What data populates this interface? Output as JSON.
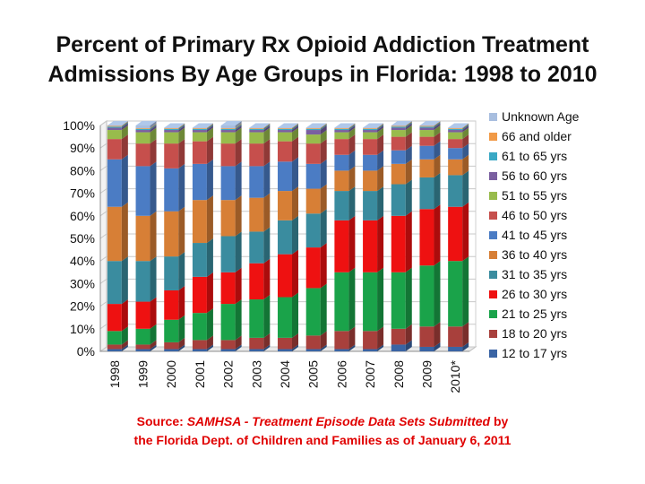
{
  "title_lines": [
    "Percent of Primary Rx Opioid Addiction Treatment",
    "Admissions By Age Groups in Florida: 1998 to 2010"
  ],
  "source": {
    "prefix": "Source:",
    "italic": "SAMHSA - Treatment Episode Data Sets  Submitted",
    "suffix": " by",
    "line2": "the Florida Dept. of Children and Families as of January 6, 2011"
  },
  "chart_data": {
    "type": "bar",
    "stacked": true,
    "title": "Percent of Primary Rx Opioid Addiction Treatment Admissions By Age Groups in Florida: 1998 to 2010",
    "xlabel": "",
    "ylabel": "",
    "ylim": [
      0,
      100
    ],
    "y_ticks": [
      "0%",
      "10%",
      "20%",
      "30%",
      "40%",
      "50%",
      "60%",
      "70%",
      "80%",
      "90%",
      "100%"
    ],
    "legend_position": "right",
    "categories": [
      "1998",
      "1999",
      "2000",
      "2001",
      "2002",
      "2003",
      "2004",
      "2005",
      "2006",
      "2007",
      "2008",
      "2009",
      "2010*"
    ],
    "series": [
      {
        "name": "12 to 17 yrs",
        "color": "#3a64a4",
        "values": [
          1,
          1,
          1,
          1,
          1,
          1,
          1,
          1,
          1,
          1,
          3,
          2,
          2
        ]
      },
      {
        "name": "18 to 20 yrs",
        "color": "#a8403c",
        "values": [
          2,
          2,
          3,
          4,
          4,
          5,
          5,
          6,
          8,
          8,
          7,
          9,
          9
        ]
      },
      {
        "name": "21 to 25 yrs",
        "color": "#1aa34a",
        "values": [
          6,
          7,
          10,
          12,
          16,
          17,
          18,
          21,
          26,
          26,
          25,
          27,
          29
        ]
      },
      {
        "name": "26 to 30 yrs",
        "color": "#ee1111",
        "values": [
          12,
          12,
          13,
          16,
          14,
          16,
          19,
          18,
          23,
          23,
          25,
          25,
          24
        ]
      },
      {
        "name": "31 to 35 yrs",
        "color": "#3a8c9f",
        "values": [
          19,
          18,
          15,
          15,
          16,
          14,
          15,
          15,
          13,
          13,
          14,
          14,
          14
        ]
      },
      {
        "name": "36 to 40 yrs",
        "color": "#d77f36",
        "values": [
          24,
          20,
          20,
          19,
          16,
          15,
          13,
          11,
          9,
          9,
          9,
          8,
          7
        ]
      },
      {
        "name": "41 to 45 yrs",
        "color": "#4b7cc4",
        "values": [
          21,
          22,
          19,
          16,
          15,
          14,
          13,
          11,
          7,
          7,
          6,
          6,
          5
        ]
      },
      {
        "name": "46 to 50 yrs",
        "color": "#c64f4c",
        "values": [
          9,
          10,
          11,
          10,
          10,
          10,
          9,
          9,
          7,
          7,
          6,
          4,
          4
        ]
      },
      {
        "name": "51 to 55 yrs",
        "color": "#98bb4c",
        "values": [
          4,
          5,
          5,
          4,
          5,
          5,
          4,
          4,
          3,
          3,
          3,
          3,
          3
        ]
      },
      {
        "name": "56 to 60 yrs",
        "color": "#7a5fa0",
        "values": [
          1,
          1,
          1,
          1,
          1,
          1,
          1,
          2,
          1,
          1,
          1,
          1,
          1
        ]
      },
      {
        "name": "61 to 65 yrs",
        "color": "#3aa8c4",
        "values": [
          0.5,
          0.5,
          0.5,
          0.5,
          0.5,
          0.5,
          0.5,
          0.5,
          0.5,
          0.5,
          0.5,
          0.5,
          0.5
        ]
      },
      {
        "name": "66 and older",
        "color": "#f19a47",
        "values": [
          0.3,
          0.3,
          0.3,
          0.3,
          0.3,
          0.3,
          0.3,
          0.3,
          0.3,
          0.3,
          0.3,
          0.3,
          0.3
        ]
      },
      {
        "name": "Unknown Age",
        "color": "#a8bedf",
        "values": [
          0.2,
          1.2,
          0.2,
          0.2,
          1.2,
          0.2,
          0.2,
          0.2,
          0.2,
          0.2,
          0.2,
          0.2,
          0.2
        ]
      }
    ]
  }
}
